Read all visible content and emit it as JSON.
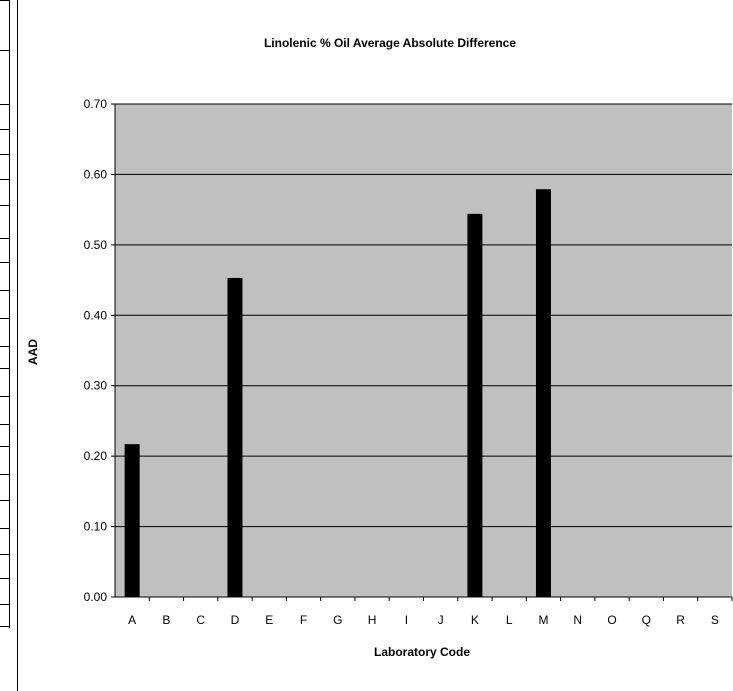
{
  "chart_data": {
    "type": "bar",
    "title": "Linolenic % Oil Average Absolute Difference",
    "xlabel": "Laboratory Code",
    "ylabel": "AAD",
    "categories": [
      "A",
      "B",
      "C",
      "D",
      "E",
      "F",
      "G",
      "H",
      "I",
      "J",
      "K",
      "L",
      "M",
      "N",
      "O",
      "Q",
      "R",
      "S"
    ],
    "values": [
      0.217,
      null,
      null,
      0.453,
      null,
      null,
      null,
      null,
      null,
      null,
      0.544,
      null,
      0.579,
      null,
      null,
      null,
      null,
      null
    ],
    "ylim": [
      0,
      0.7
    ],
    "yticks": [
      "0.00",
      "0.10",
      "0.20",
      "0.30",
      "0.40",
      "0.50",
      "0.60",
      "0.70"
    ],
    "grid": true,
    "colors": {
      "plot_background": "#c0c0c0",
      "bar": "#000000",
      "gridline": "#000000"
    }
  }
}
